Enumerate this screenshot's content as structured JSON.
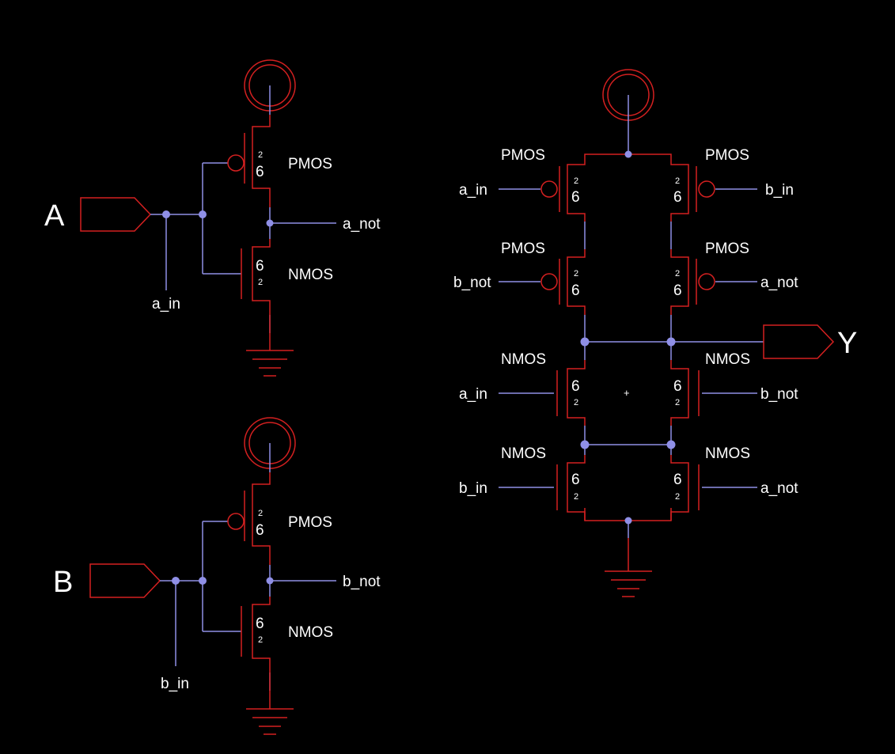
{
  "colors": {
    "background": "#000000",
    "wire": "#8f8fe6",
    "component": "#d42020",
    "text": "#ffffff"
  },
  "inverter_a": {
    "port": "A",
    "input_net": "a_in",
    "output_net": "a_not",
    "pmos": {
      "type": "PMOS",
      "width": "6",
      "length": "2"
    },
    "nmos": {
      "type": "NMOS",
      "width": "6",
      "length": "2"
    }
  },
  "inverter_b": {
    "port": "B",
    "input_net": "b_in",
    "output_net": "b_not",
    "pmos": {
      "type": "PMOS",
      "width": "6",
      "length": "2"
    },
    "nmos": {
      "type": "NMOS",
      "width": "6",
      "length": "2"
    }
  },
  "xor_gate": {
    "output_port": "Y",
    "center_mark": "+",
    "transistors": [
      {
        "id": "pa",
        "type": "PMOS",
        "gate_net": "a_in",
        "width": "6",
        "length": "2"
      },
      {
        "id": "pb",
        "type": "PMOS",
        "gate_net": "b_in",
        "width": "6",
        "length": "2"
      },
      {
        "id": "pbn",
        "type": "PMOS",
        "gate_net": "b_not",
        "width": "6",
        "length": "2"
      },
      {
        "id": "pan",
        "type": "PMOS",
        "gate_net": "a_not",
        "width": "6",
        "length": "2"
      },
      {
        "id": "na",
        "type": "NMOS",
        "gate_net": "a_in",
        "width": "6",
        "length": "2"
      },
      {
        "id": "nbn",
        "type": "NMOS",
        "gate_net": "b_not",
        "width": "6",
        "length": "2"
      },
      {
        "id": "nb",
        "type": "NMOS",
        "gate_net": "b_in",
        "width": "6",
        "length": "2"
      },
      {
        "id": "nan",
        "type": "NMOS",
        "gate_net": "a_not",
        "width": "6",
        "length": "2"
      }
    ]
  }
}
